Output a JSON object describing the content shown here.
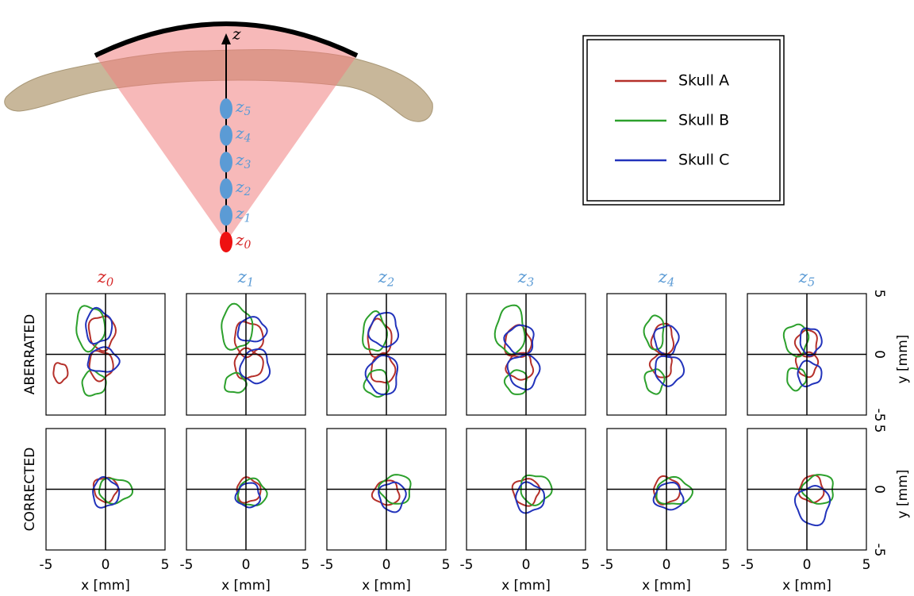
{
  "diagram": {
    "axis_label": "z",
    "focus_labels": [
      {
        "text": "z",
        "sub": "5"
      },
      {
        "text": "z",
        "sub": "4"
      },
      {
        "text": "z",
        "sub": "3"
      },
      {
        "text": "z",
        "sub": "2"
      },
      {
        "text": "z",
        "sub": "1"
      },
      {
        "text": "z",
        "sub": "0"
      }
    ]
  },
  "legend": [
    {
      "name": "Skull A",
      "color": "#b5302a"
    },
    {
      "name": "Skull B",
      "color": "#2ca02c"
    },
    {
      "name": "Skull C",
      "color": "#2233bb"
    }
  ],
  "panels": {
    "columns": [
      {
        "text": "z",
        "sub": "0",
        "color": "#d62728"
      },
      {
        "text": "z",
        "sub": "1",
        "color": "#5b9bd5"
      },
      {
        "text": "z",
        "sub": "2",
        "color": "#5b9bd5"
      },
      {
        "text": "z",
        "sub": "3",
        "color": "#5b9bd5"
      },
      {
        "text": "z",
        "sub": "4",
        "color": "#5b9bd5"
      },
      {
        "text": "z",
        "sub": "5",
        "color": "#5b9bd5"
      }
    ],
    "rows": [
      "ABERRATED",
      "CORRECTED"
    ],
    "xlim": [
      -5,
      5
    ],
    "xticks": [
      -5,
      0,
      5
    ],
    "ylim": [
      -5,
      5
    ],
    "yticks": [
      5,
      0,
      -5
    ],
    "xlabel": "x [mm]",
    "ylabel": "y [mm]"
  }
}
